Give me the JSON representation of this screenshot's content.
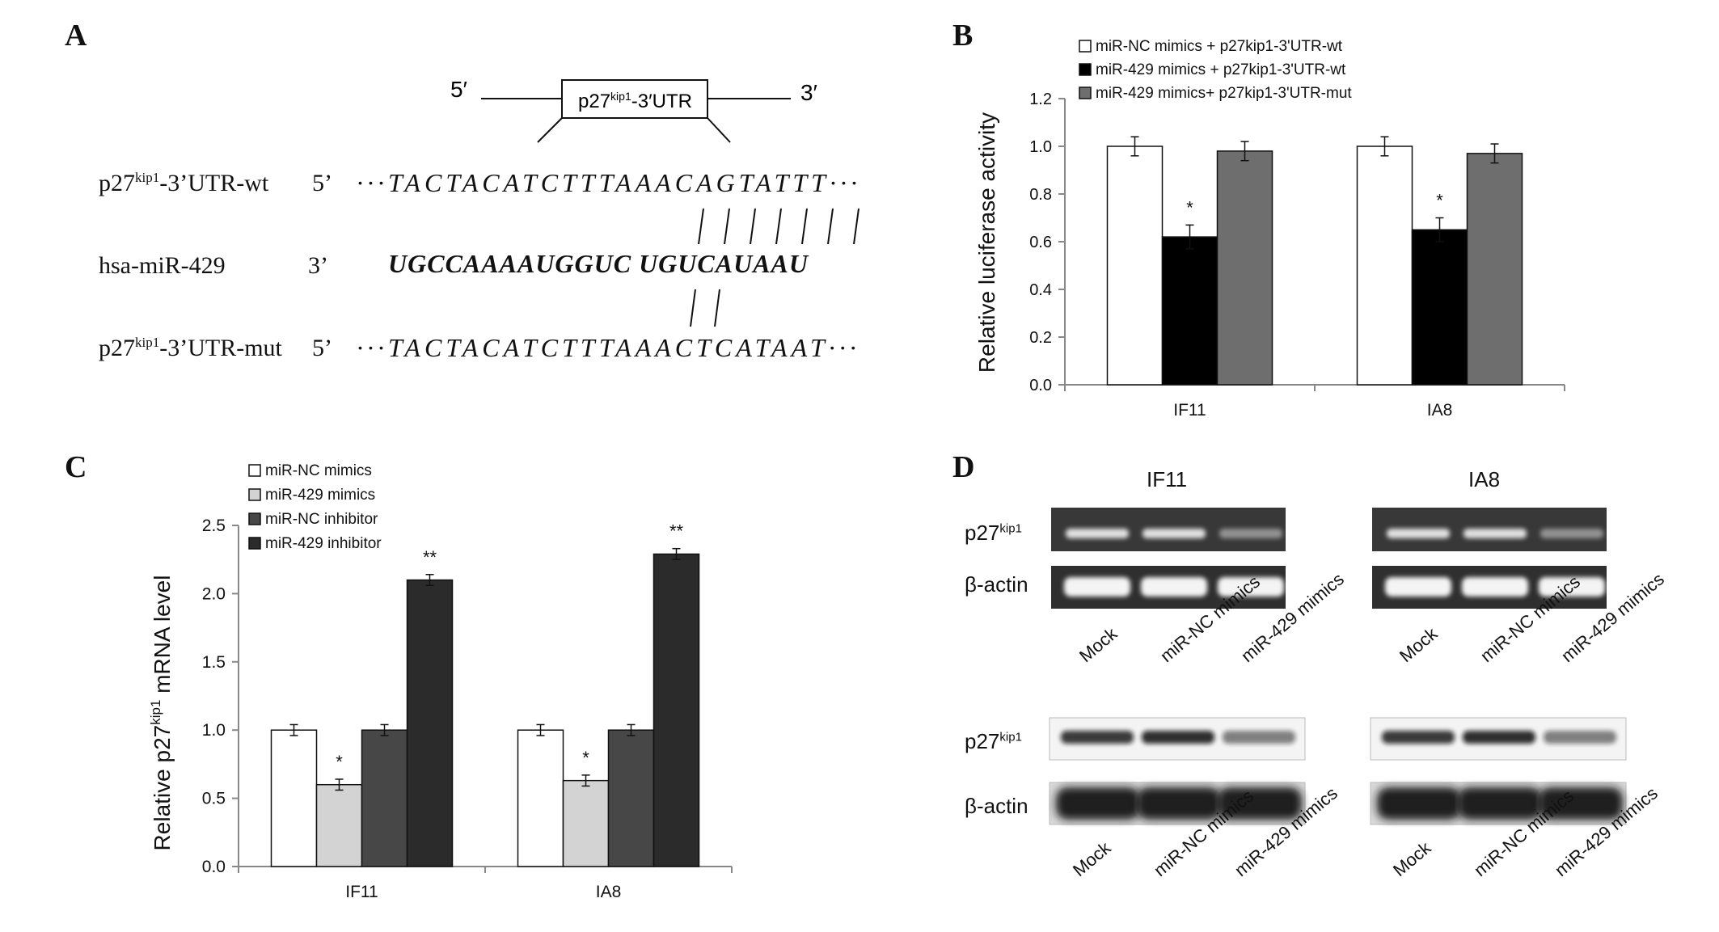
{
  "panel_a": {
    "letter": "A",
    "construct_5": "5′",
    "construct_3": "3′",
    "construct_box": "p27",
    "construct_box_sup": "kip1",
    "construct_box_suffix": "-3′UTR",
    "rows": [
      {
        "label_pre": "p27",
        "label_sup": "kip1",
        "label_post": "-3’UTR-wt",
        "end": "5’",
        "seq": "···TACTACATCTTTAAACAGTATTT···"
      },
      {
        "label_pre": "hsa-miR-429",
        "label_sup": "",
        "label_post": "",
        "end": "3’",
        "seq": "UGCCAAAAUGGUC UGUCAUAAU"
      },
      {
        "label_pre": "p27",
        "label_sup": "kip1",
        "label_post": "-3’UTR-mut",
        "end": "5’",
        "seq": "···TACTACATCTTTAAACTCATAAT···"
      }
    ]
  },
  "panel_b": {
    "letter": "B"
  },
  "panel_c": {
    "letter": "C"
  },
  "panel_d": {
    "letter": "D",
    "cells": [
      "IF11",
      "IA8"
    ],
    "rows": {
      "target_pre": "p27",
      "target_sup": "kip1",
      "control": "β-actin"
    },
    "lanes": [
      "Mock",
      "miR-NC mimics",
      "miR-429 mimics"
    ],
    "pcr_intensity": {
      "IF11": [
        0.85,
        0.85,
        0.45
      ],
      "IA8": [
        0.85,
        0.85,
        0.45
      ]
    },
    "wb_intensity": {
      "IF11": [
        0.8,
        0.85,
        0.5
      ],
      "IA8": [
        0.8,
        0.85,
        0.5
      ]
    }
  },
  "chart_data": [
    {
      "panel": "B",
      "type": "bar",
      "categories": [
        "IF11",
        "IA8"
      ],
      "series": [
        {
          "name": "miR-NC mimics + p27kip1-3'UTR-wt",
          "values": [
            1.0,
            1.0
          ],
          "errors": [
            0.04,
            0.04
          ],
          "color": "#ffffff"
        },
        {
          "name": "miR-429 mimics + p27kip1-3'UTR-wt",
          "values": [
            0.62,
            0.65
          ],
          "errors": [
            0.05,
            0.05
          ],
          "color": "#000000"
        },
        {
          "name": "miR-429 mimics+ p27kip1-3'UTR-mut",
          "values": [
            0.98,
            0.97
          ],
          "errors": [
            0.04,
            0.04
          ],
          "color": "#6e6e6e"
        }
      ],
      "annotations": [
        {
          "category": "IF11",
          "series": 1,
          "text": "*"
        },
        {
          "category": "IA8",
          "series": 1,
          "text": "*"
        }
      ],
      "ylabel": "Relative luciferase activity",
      "xlabel": "",
      "ylim": [
        0,
        1.2
      ],
      "yticks": [
        "0.0",
        "0.2",
        "0.4",
        "0.6",
        "0.8",
        "1.0",
        "1.2"
      ],
      "legend": "top-left",
      "grid": false
    },
    {
      "panel": "C",
      "type": "bar",
      "categories": [
        "IF11",
        "IA8"
      ],
      "series": [
        {
          "name": "miR-NC mimics",
          "values": [
            1.0,
            1.0
          ],
          "errors": [
            0.04,
            0.04
          ],
          "color": "#ffffff"
        },
        {
          "name": "miR-429 mimics",
          "values": [
            0.6,
            0.63
          ],
          "errors": [
            0.04,
            0.04
          ],
          "color": "#d3d3d3"
        },
        {
          "name": "miR-NC inhibitor",
          "values": [
            1.0,
            1.0
          ],
          "errors": [
            0.04,
            0.04
          ],
          "color": "#474747"
        },
        {
          "name": "miR-429 inhibitor",
          "values": [
            2.1,
            2.29
          ],
          "errors": [
            0.04,
            0.04
          ],
          "color": "#2b2b2b"
        }
      ],
      "annotations": [
        {
          "category": "IF11",
          "series": 1,
          "text": "*"
        },
        {
          "category": "IF11",
          "series": 3,
          "text": "**"
        },
        {
          "category": "IA8",
          "series": 1,
          "text": "*"
        },
        {
          "category": "IA8",
          "series": 3,
          "text": "**"
        }
      ],
      "ylabel_pre": "Relative p27",
      "ylabel_sup": "kip1",
      "ylabel_post": " mRNA  level",
      "xlabel": "",
      "ylim": [
        0,
        2.5
      ],
      "yticks": [
        "0.0",
        "0.5",
        "1.0",
        "1.5",
        "2.0",
        "2.5"
      ],
      "legend": "top-left",
      "grid": false
    }
  ]
}
